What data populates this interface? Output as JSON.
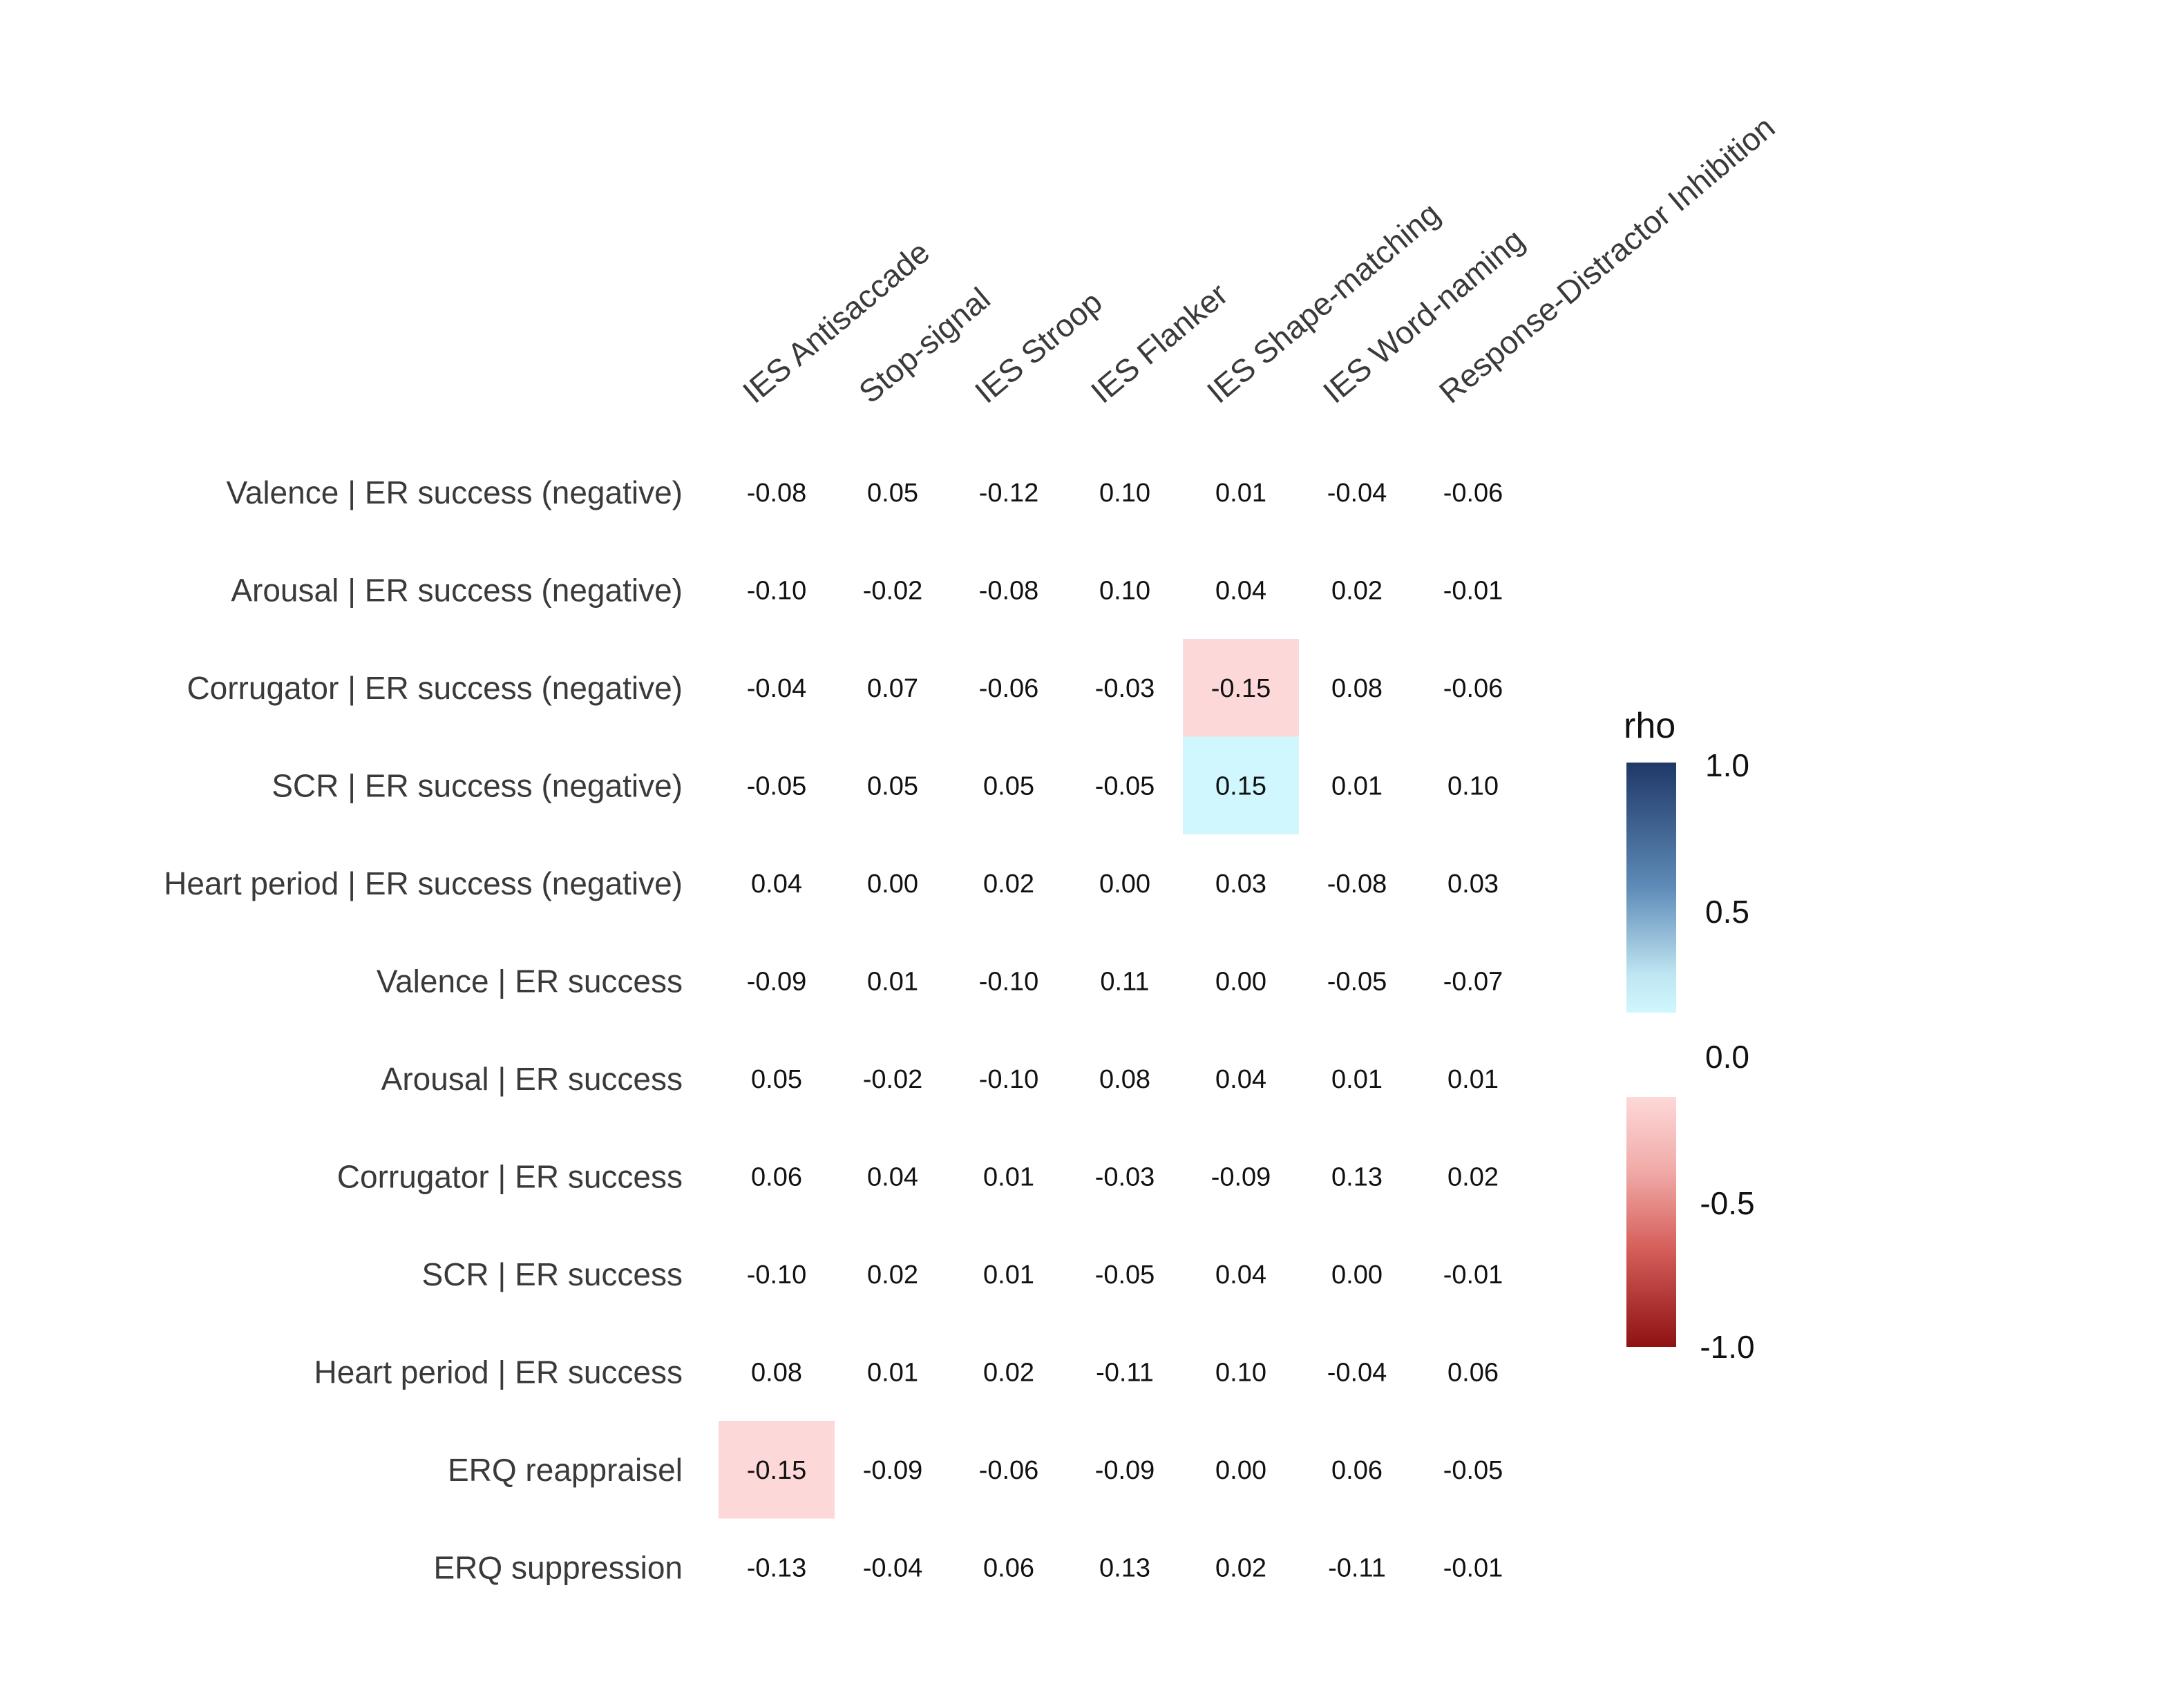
{
  "chart_data": {
    "type": "heatmap",
    "title": "",
    "columns": [
      "IES Antisaccade",
      "Stop-signal",
      "IES Stroop",
      "IES Flanker",
      "IES Shape-matching",
      "IES Word-naming",
      "Response-Distractor Inhibition"
    ],
    "rows": [
      "Valence | ER success (negative)",
      "Arousal | ER success (negative)",
      "Corrugator | ER success (negative)",
      "SCR | ER success (negative)",
      "Heart period | ER success (negative)",
      "Valence | ER success",
      "Arousal | ER success",
      "Corrugator | ER success",
      "SCR | ER success",
      "Heart period | ER success",
      "ERQ reappraisel",
      "ERQ suppression"
    ],
    "values": [
      [
        -0.08,
        0.05,
        -0.12,
        0.1,
        0.01,
        -0.04,
        -0.06
      ],
      [
        -0.1,
        -0.02,
        -0.08,
        0.1,
        0.04,
        0.02,
        -0.01
      ],
      [
        -0.04,
        0.07,
        -0.06,
        -0.03,
        -0.15,
        0.08,
        -0.06
      ],
      [
        -0.05,
        0.05,
        0.05,
        -0.05,
        0.15,
        0.01,
        0.1
      ],
      [
        0.04,
        0.0,
        0.02,
        0.0,
        0.03,
        -0.08,
        0.03
      ],
      [
        -0.09,
        0.01,
        -0.1,
        0.11,
        0.0,
        -0.05,
        -0.07
      ],
      [
        0.05,
        -0.02,
        -0.1,
        0.08,
        0.04,
        0.01,
        0.01
      ],
      [
        0.06,
        0.04,
        0.01,
        -0.03,
        -0.09,
        0.13,
        0.02
      ],
      [
        -0.1,
        0.02,
        0.01,
        -0.05,
        0.04,
        0.0,
        -0.01
      ],
      [
        0.08,
        0.01,
        0.02,
        -0.11,
        0.1,
        -0.04,
        0.06
      ],
      [
        -0.15,
        -0.09,
        -0.06,
        -0.09,
        0.0,
        0.06,
        -0.05
      ],
      [
        -0.13,
        -0.04,
        0.06,
        0.13,
        0.02,
        -0.11,
        -0.01
      ]
    ],
    "labels": [
      [
        "-0.08",
        "0.05",
        "-0.12",
        "0.10",
        "0.01",
        "-0.04",
        "-0.06"
      ],
      [
        "-0.10",
        "-0.02",
        "-0.08",
        "0.10",
        "0.04",
        "0.02",
        "-0.01"
      ],
      [
        "-0.04",
        "0.07",
        "-0.06",
        "-0.03",
        "-0.15",
        "0.08",
        "-0.06"
      ],
      [
        "-0.05",
        "0.05",
        "0.05",
        "-0.05",
        "0.15",
        "0.01",
        "0.10"
      ],
      [
        "0.04",
        "0.00",
        "0.02",
        "0.00",
        "0.03",
        "-0.08",
        "0.03"
      ],
      [
        "-0.09",
        "0.01",
        "-0.10",
        "0.11",
        "0.00",
        "-0.05",
        "-0.07"
      ],
      [
        "0.05",
        "-0.02",
        "-0.10",
        "0.08",
        "0.04",
        "0.01",
        "0.01"
      ],
      [
        "0.06",
        "0.04",
        "0.01",
        "-0.03",
        "-0.09",
        "0.13",
        "0.02"
      ],
      [
        "-0.10",
        "0.02",
        "0.01",
        "-0.05",
        "0.04",
        "0.00",
        "-0.01"
      ],
      [
        "0.08",
        "0.01",
        "0.02",
        "-0.11",
        "0.10",
        "-0.04",
        "0.06"
      ],
      [
        "-0.15",
        "-0.09",
        "-0.06",
        "-0.09",
        "0.00",
        "0.06",
        "-0.05"
      ],
      [
        "-0.13",
        "-0.04",
        "0.06",
        "0.13",
        "0.02",
        "-0.11",
        "-0.01"
      ]
    ],
    "highlight_threshold": 0.15,
    "legend": {
      "title": "rho",
      "ticks": [
        "1.0",
        "0.5",
        "0.0",
        "-0.5",
        "-1.0"
      ],
      "range": [
        -1.0,
        1.0
      ],
      "gap": [
        -0.15,
        0.15
      ],
      "colors": {
        "max": "#1f3868",
        "mid_pos": "#5f8bb8",
        "light_pos": "#cff7fd",
        "light_neg": "#fdd8d8",
        "mid_neg": "#d6605c",
        "min": "#8e1212"
      }
    }
  }
}
